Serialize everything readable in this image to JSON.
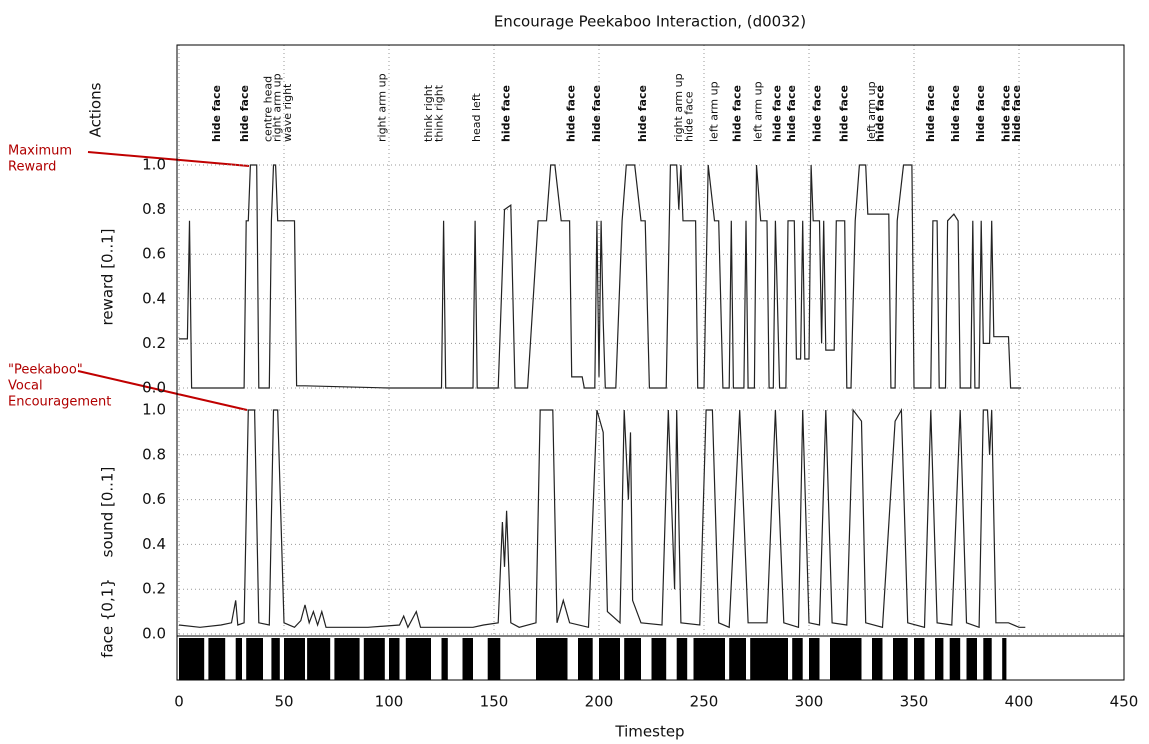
{
  "chart_data": [
    {
      "type": "line",
      "title": "Encourage Peekaboo Interaction, (d0032)",
      "xlabel": "Timestep",
      "ylabel": "reward [0..1]",
      "actions_label": "Actions",
      "xlim": [
        0,
        450
      ],
      "xticks": [
        0,
        50,
        100,
        150,
        200,
        250,
        300,
        350,
        400,
        450
      ],
      "ylim": [
        0,
        1
      ],
      "yticks": [
        {
          "value": 0,
          "label": "0.0"
        },
        0.2,
        0.4,
        0.6,
        0.8,
        {
          "value": 1,
          "label": "1.0"
        }
      ],
      "grid": true,
      "color": "#222222",
      "x": [
        0,
        4,
        5,
        6,
        31,
        32,
        33,
        34,
        37,
        38,
        43,
        44,
        45,
        46,
        47,
        55,
        56,
        60,
        100,
        125,
        126,
        127,
        140,
        141,
        142,
        152,
        155,
        158,
        160,
        166,
        171,
        175,
        177,
        179,
        182,
        186,
        187,
        192,
        193,
        198,
        199,
        200,
        201,
        202,
        203,
        208,
        211,
        213,
        217,
        220,
        222,
        224,
        232,
        234,
        237,
        238,
        239,
        240,
        246,
        247,
        250,
        252,
        255,
        257,
        259,
        262,
        263,
        264,
        269,
        270,
        271,
        274,
        275,
        277,
        280,
        281,
        283,
        284,
        286,
        289,
        290,
        293,
        294,
        296,
        297,
        298,
        300,
        301,
        302,
        305,
        306,
        307,
        308,
        312,
        313,
        317,
        318,
        320,
        322,
        324,
        327,
        328,
        338,
        339,
        341,
        342,
        345,
        349,
        350,
        358,
        359,
        361,
        362,
        365,
        366,
        369,
        371,
        372,
        377,
        378,
        379,
        381,
        382,
        383,
        386,
        387,
        388,
        395,
        396,
        401
      ],
      "values": [
        0.22,
        0.22,
        0.75,
        0,
        0,
        0.75,
        0.75,
        1,
        1,
        0,
        0,
        0.75,
        1,
        1,
        0.75,
        0.75,
        0.01,
        0.01,
        0,
        0,
        0.75,
        0,
        0,
        0.75,
        0,
        0,
        0.8,
        0.82,
        0,
        0,
        0.75,
        0.75,
        1,
        1,
        0.75,
        0.75,
        0.05,
        0.05,
        0,
        0,
        0.75,
        0.05,
        0.75,
        0.3,
        0,
        0,
        0.75,
        1,
        1,
        0.75,
        0.75,
        0,
        0,
        1,
        1,
        0.8,
        1,
        0.75,
        0.75,
        0,
        0,
        1,
        0.75,
        0.75,
        0,
        0,
        0.75,
        0,
        0,
        0.75,
        0,
        0,
        1,
        0.75,
        0.75,
        0,
        0,
        0.75,
        0,
        0,
        0.75,
        0.75,
        0.13,
        0.13,
        0.75,
        0.13,
        0.13,
        1,
        0.75,
        0.75,
        0.2,
        0.75,
        0.17,
        0.17,
        0.75,
        0.75,
        0,
        0,
        0.75,
        1,
        1,
        0.78,
        0.78,
        0,
        0,
        0.75,
        1,
        1,
        0,
        0,
        0.75,
        0.75,
        0,
        0,
        0.75,
        0.78,
        0.75,
        0,
        0,
        0.75,
        0,
        0,
        0.75,
        0.2,
        0.2,
        0.75,
        0.23,
        0.23,
        0,
        0
      ],
      "actions": [
        {
          "x": 18,
          "label": "hide face",
          "color": "#8b0000"
        },
        {
          "x": 31.5,
          "label": "hide face",
          "color": "#8b0000"
        },
        {
          "x": 42.5,
          "label": "centre head",
          "color": "#333333"
        },
        {
          "x": 47,
          "label": "right arm up",
          "color": "#333333"
        },
        {
          "x": 52,
          "label": "wave right",
          "color": "#333333"
        },
        {
          "x": 97,
          "label": "right arm up",
          "color": "#333333"
        },
        {
          "x": 119,
          "label": "think right",
          "color": "#333333"
        },
        {
          "x": 124,
          "label": "think right",
          "color": "#333333"
        },
        {
          "x": 142,
          "label": "head left",
          "color": "#333333"
        },
        {
          "x": 156,
          "label": "hide face",
          "color": "#8b0000"
        },
        {
          "x": 187,
          "label": "hide face",
          "color": "#8b0000"
        },
        {
          "x": 199,
          "label": "hide face",
          "color": "#8b0000"
        },
        {
          "x": 221,
          "label": "hide face",
          "color": "#8b0000"
        },
        {
          "x": 238,
          "label": "right arm up",
          "color": "#333333"
        },
        {
          "x": 243,
          "label": "hide face",
          "color": "#333333"
        },
        {
          "x": 255,
          "label": "left arm up",
          "color": "#333333"
        },
        {
          "x": 266,
          "label": "hide face",
          "color": "#8b0000"
        },
        {
          "x": 276,
          "label": "left arm up",
          "color": "#333333"
        },
        {
          "x": 285,
          "label": "hide face",
          "color": "#8b0000"
        },
        {
          "x": 292,
          "label": "hide face",
          "color": "#8b0000"
        },
        {
          "x": 304,
          "label": "hide face",
          "color": "#8b0000"
        },
        {
          "x": 317,
          "label": "hide face",
          "color": "#8b0000"
        },
        {
          "x": 330,
          "label": "left arm up",
          "color": "#333333"
        },
        {
          "x": 334,
          "label": "hide face",
          "color": "#8b0000"
        },
        {
          "x": 358,
          "label": "hide face",
          "color": "#8b0000"
        },
        {
          "x": 370,
          "label": "hide face",
          "color": "#8b0000"
        },
        {
          "x": 382,
          "label": "hide face",
          "color": "#8b0000"
        },
        {
          "x": 394,
          "label": "hide face",
          "color": "#8b0000"
        },
        {
          "x": 399,
          "label": "hide face",
          "color": "#8b0000"
        }
      ],
      "annotations": [
        {
          "lines": [
            "Maximum",
            "Reward"
          ]
        },
        {
          "lines": [
            "\"Peekaboo\"",
            "Vocal",
            "Encouragement"
          ]
        }
      ]
    },
    {
      "type": "line",
      "ylabel": "sound [0..1]",
      "xlim": [
        0,
        450
      ],
      "ylim": [
        0,
        1
      ],
      "yticks": [
        {
          "value": 0,
          "label": "0.0"
        },
        0.2,
        0.4,
        0.6,
        0.8,
        {
          "value": 1,
          "label": "1.0"
        }
      ],
      "grid": true,
      "color": "#222222",
      "x": [
        0,
        10,
        20,
        25,
        27,
        28,
        31,
        33,
        36,
        38,
        43,
        45,
        47,
        50,
        55,
        58,
        60,
        62,
        64,
        66,
        68,
        70,
        90,
        105,
        107,
        109,
        113,
        115,
        140,
        145,
        152,
        154,
        155,
        156,
        158,
        162,
        170,
        172,
        178,
        180,
        183,
        186,
        195,
        199,
        202,
        204,
        210,
        212,
        214,
        215,
        216,
        220,
        230,
        233,
        236,
        237,
        239,
        248,
        251,
        254,
        257,
        262,
        267,
        271,
        280,
        284,
        288,
        295,
        297,
        300,
        305,
        308,
        311,
        318,
        321,
        325,
        327,
        335,
        341,
        344,
        347,
        355,
        358,
        361,
        368,
        372,
        375,
        381,
        383,
        385,
        386,
        387,
        389,
        395,
        400,
        403
      ],
      "values": [
        0.04,
        0.03,
        0.04,
        0.05,
        0.15,
        0.04,
        0.05,
        1,
        1,
        0.05,
        0.04,
        1,
        1,
        0.05,
        0.03,
        0.06,
        0.13,
        0.05,
        0.1,
        0.04,
        0.1,
        0.03,
        0.03,
        0.04,
        0.08,
        0.03,
        0.1,
        0.03,
        0.03,
        0.04,
        0.05,
        0.5,
        0.3,
        0.55,
        0.05,
        0.03,
        0.05,
        1,
        1,
        0.05,
        0.15,
        0.05,
        0.03,
        1,
        0.9,
        0.1,
        0.05,
        1,
        0.6,
        0.9,
        0.15,
        0.05,
        0.04,
        1,
        0.2,
        1,
        0.05,
        0.04,
        1,
        1,
        0.05,
        0.03,
        1,
        0.05,
        0.05,
        1,
        0.05,
        0.03,
        1,
        0.05,
        0.04,
        1,
        0.05,
        0.04,
        1,
        0.95,
        0.05,
        0.03,
        0.95,
        1,
        0.05,
        0.03,
        1,
        0.05,
        0.04,
        1,
        0.05,
        0.03,
        1,
        1,
        0.8,
        1,
        0.05,
        0.05,
        0.03,
        0.03
      ]
    },
    {
      "type": "binary",
      "ylabel": "face {0,1}",
      "xlim": [
        0,
        450
      ],
      "color": "#000000",
      "intervals": [
        [
          0,
          12
        ],
        [
          14,
          22
        ],
        [
          27,
          30
        ],
        [
          32,
          40
        ],
        [
          44,
          48
        ],
        [
          50,
          60
        ],
        [
          61,
          72
        ],
        [
          74,
          86
        ],
        [
          88,
          98
        ],
        [
          100,
          105
        ],
        [
          108,
          120
        ],
        [
          125,
          128
        ],
        [
          135,
          140
        ],
        [
          147,
          153
        ],
        [
          170,
          185
        ],
        [
          190,
          197
        ],
        [
          200,
          210
        ],
        [
          212,
          220
        ],
        [
          225,
          232
        ],
        [
          237,
          242
        ],
        [
          245,
          260
        ],
        [
          262,
          270
        ],
        [
          272,
          290
        ],
        [
          292,
          297
        ],
        [
          300,
          305
        ],
        [
          310,
          325
        ],
        [
          330,
          335
        ],
        [
          340,
          347
        ],
        [
          350,
          355
        ],
        [
          360,
          364
        ],
        [
          367,
          372
        ],
        [
          375,
          380
        ],
        [
          383,
          387
        ],
        [
          392,
          394
        ]
      ]
    }
  ]
}
